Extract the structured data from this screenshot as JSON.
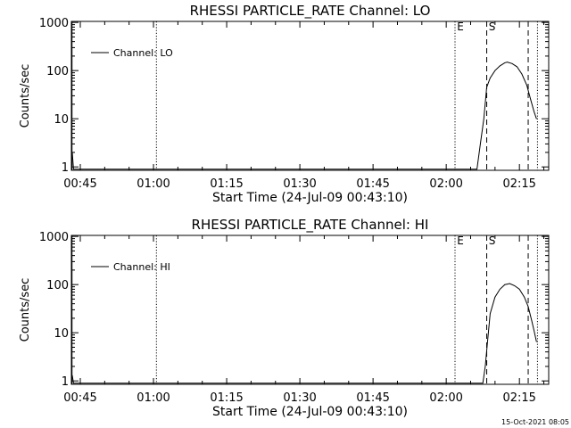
{
  "stamp": "15-Oct-2021 08:05",
  "chart_data": [
    {
      "type": "line",
      "title": "RHESSI PARTICLE_RATE Channel: LO",
      "xlabel": "Start Time (24-Jul-09 00:43:10)",
      "ylabel": "Counts/sec",
      "yscale": "log",
      "ylim": [
        0.85,
        1050
      ],
      "xlim_minutes": [
        43.17,
        141
      ],
      "xticks": [
        {
          "t": 45,
          "label": "00:45"
        },
        {
          "t": 60,
          "label": "01:00"
        },
        {
          "t": 75,
          "label": "01:15"
        },
        {
          "t": 90,
          "label": "01:30"
        },
        {
          "t": 105,
          "label": "01:45"
        },
        {
          "t": 120,
          "label": "02:00"
        },
        {
          "t": 135,
          "label": "02:15"
        }
      ],
      "yticks": [
        {
          "v": 1,
          "label": "1"
        },
        {
          "v": 10,
          "label": "10"
        },
        {
          "v": 100,
          "label": "100"
        },
        {
          "v": 1000,
          "label": "1000"
        }
      ],
      "legend": {
        "label": "Channel: LO",
        "position": "top-left"
      },
      "markers": [
        {
          "t": 43.3,
          "style": "solid",
          "label": ""
        },
        {
          "t": 60.6,
          "style": "dotted",
          "label": ""
        },
        {
          "t": 121.8,
          "style": "dotted",
          "label": "E"
        },
        {
          "t": 128.3,
          "style": "dashed",
          "label": "S"
        },
        {
          "t": 136.8,
          "style": "dashed",
          "label": ""
        },
        {
          "t": 138.7,
          "style": "dotted",
          "label": ""
        }
      ],
      "series": [
        {
          "name": "Channel: LO",
          "points": [
            {
              "t": 43.35,
              "v": 2.0
            },
            {
              "t": 43.6,
              "v": 0.9
            },
            {
              "t": 126.3,
              "v": 0.9
            },
            {
              "t": 127.0,
              "v": 3.0
            },
            {
              "t": 127.7,
              "v": 10
            },
            {
              "t": 128.3,
              "v": 45
            },
            {
              "t": 129.0,
              "v": 70
            },
            {
              "t": 130.0,
              "v": 100
            },
            {
              "t": 131.0,
              "v": 125
            },
            {
              "t": 132.0,
              "v": 145
            },
            {
              "t": 132.5,
              "v": 150
            },
            {
              "t": 133.5,
              "v": 140
            },
            {
              "t": 134.5,
              "v": 120
            },
            {
              "t": 135.5,
              "v": 85
            },
            {
              "t": 136.5,
              "v": 50
            },
            {
              "t": 137.3,
              "v": 25
            },
            {
              "t": 138.0,
              "v": 14
            },
            {
              "t": 138.5,
              "v": 10
            }
          ]
        }
      ]
    },
    {
      "type": "line",
      "title": "RHESSI PARTICLE_RATE Channel: HI",
      "xlabel": "Start Time (24-Jul-09 00:43:10)",
      "ylabel": "Counts/sec",
      "yscale": "log",
      "ylim": [
        0.85,
        1050
      ],
      "xlim_minutes": [
        43.17,
        141
      ],
      "xticks": [
        {
          "t": 45,
          "label": "00:45"
        },
        {
          "t": 60,
          "label": "01:00"
        },
        {
          "t": 75,
          "label": "01:15"
        },
        {
          "t": 90,
          "label": "01:30"
        },
        {
          "t": 105,
          "label": "01:45"
        },
        {
          "t": 120,
          "label": "02:00"
        },
        {
          "t": 135,
          "label": "02:15"
        }
      ],
      "yticks": [
        {
          "v": 1,
          "label": "1"
        },
        {
          "v": 10,
          "label": "10"
        },
        {
          "v": 100,
          "label": "100"
        },
        {
          "v": 1000,
          "label": "1000"
        }
      ],
      "legend": {
        "label": "Channel: HI",
        "position": "top-left"
      },
      "markers": [
        {
          "t": 43.3,
          "style": "solid",
          "label": ""
        },
        {
          "t": 60.6,
          "style": "dotted",
          "label": ""
        },
        {
          "t": 121.8,
          "style": "dotted",
          "label": "E"
        },
        {
          "t": 128.3,
          "style": "dashed",
          "label": "S"
        },
        {
          "t": 136.8,
          "style": "dashed",
          "label": ""
        },
        {
          "t": 138.7,
          "style": "dotted",
          "label": ""
        }
      ],
      "series": [
        {
          "name": "Channel: HI",
          "points": [
            {
              "t": 43.35,
              "v": 1.3
            },
            {
              "t": 43.6,
              "v": 0.9
            },
            {
              "t": 127.5,
              "v": 0.9
            },
            {
              "t": 128.0,
              "v": 2.0
            },
            {
              "t": 128.5,
              "v": 7
            },
            {
              "t": 129.0,
              "v": 25
            },
            {
              "t": 130.0,
              "v": 55
            },
            {
              "t": 131.0,
              "v": 80
            },
            {
              "t": 132.0,
              "v": 100
            },
            {
              "t": 133.0,
              "v": 105
            },
            {
              "t": 134.0,
              "v": 95
            },
            {
              "t": 135.0,
              "v": 80
            },
            {
              "t": 136.0,
              "v": 55
            },
            {
              "t": 136.8,
              "v": 35
            },
            {
              "t": 137.5,
              "v": 18
            },
            {
              "t": 138.0,
              "v": 11
            },
            {
              "t": 138.5,
              "v": 6.5
            }
          ]
        }
      ]
    }
  ]
}
